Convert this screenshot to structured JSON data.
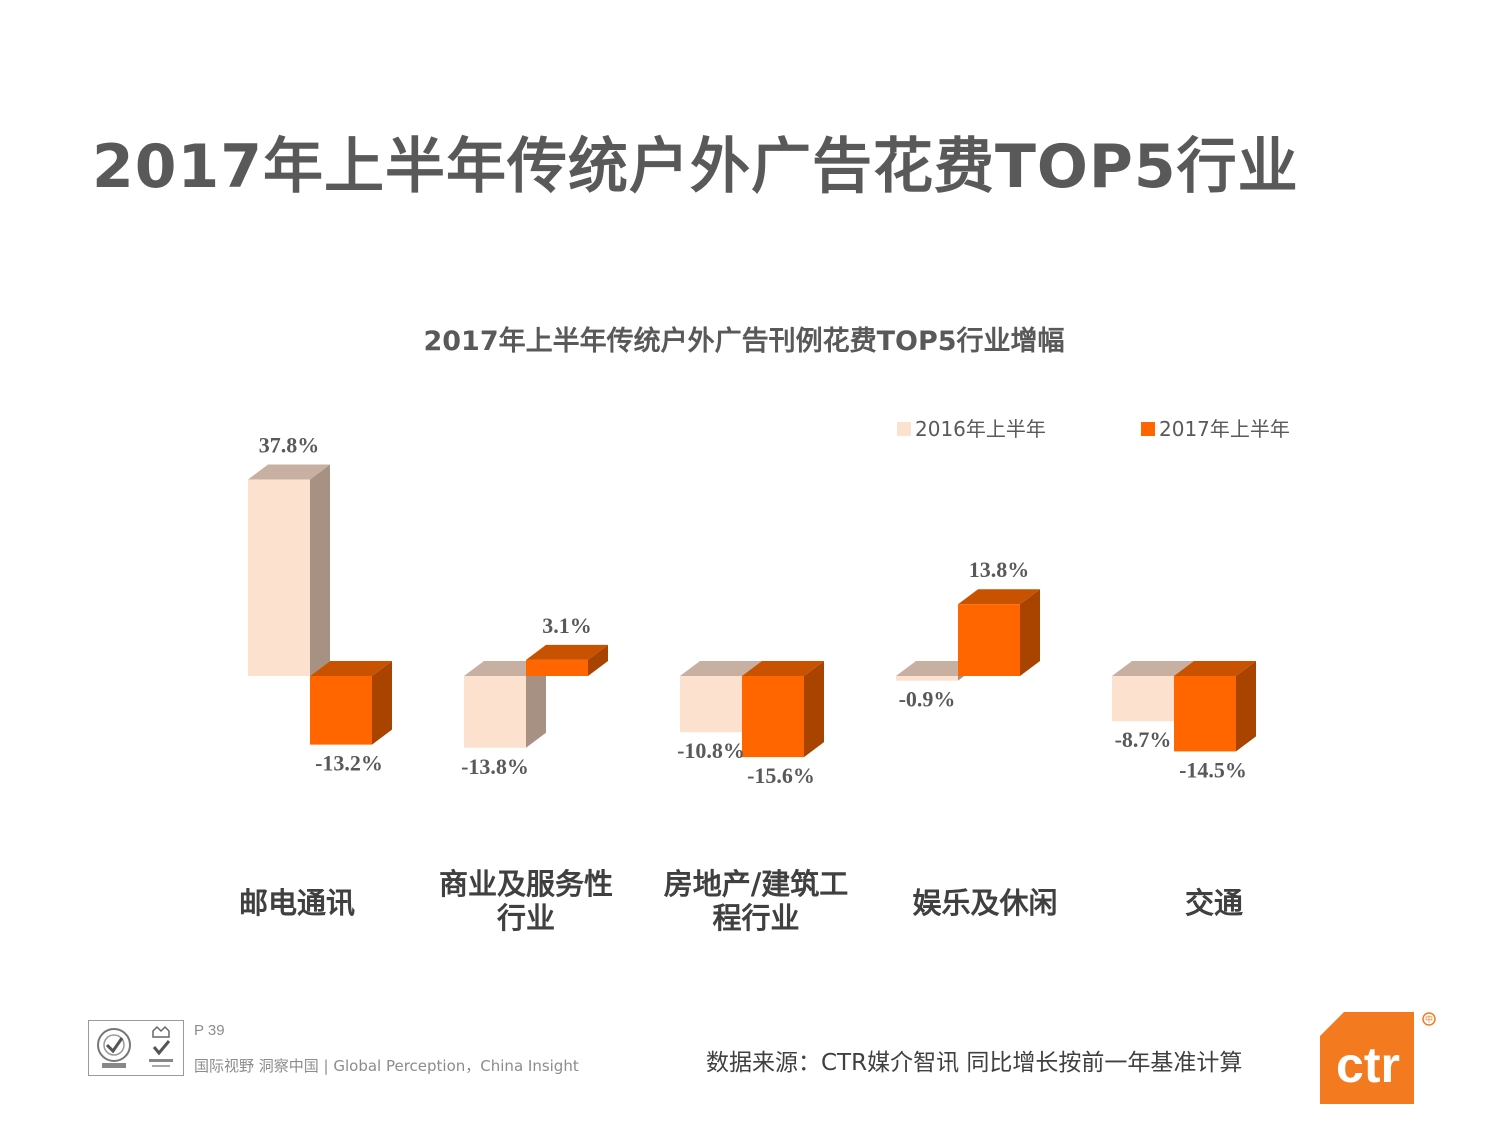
{
  "page": {
    "title": "2017年上半年传统户外广告花费TOP5行业",
    "page_number": "P 39",
    "tagline": "国际视野  洞察中国 |  Global Perception，China Insight",
    "source": "数据来源：CTR媒介智讯   同比增长按前一年基准计算",
    "logo_text": "ctr",
    "logo_mark": "中",
    "cert_badges": [
      "sgs-badge",
      "ukas-badge"
    ]
  },
  "chart_data": {
    "type": "bar",
    "title": "2017年上半年传统户外广告刊例花费TOP5行业增幅",
    "categories": [
      [
        "邮电通讯"
      ],
      [
        "商业及服务性",
        "行业"
      ],
      [
        "房地产/建筑工",
        "程行业"
      ],
      [
        "娱乐及休闲"
      ],
      [
        "交通"
      ]
    ],
    "series": [
      {
        "name": "2016年上半年",
        "values": [
          37.8,
          -13.8,
          -10.8,
          -0.9,
          -8.7
        ],
        "labels": [
          "37.8%",
          "-13.8%",
          "-10.8%",
          "-0.9%",
          "-8.7%"
        ]
      },
      {
        "name": "2017年上半年",
        "values": [
          -13.2,
          3.1,
          -15.6,
          13.8,
          -14.5
        ],
        "labels": [
          "-13.2%",
          "3.1%",
          "-15.6%",
          "13.8%",
          "-14.5%"
        ]
      }
    ],
    "ylim": [
      -20,
      40
    ],
    "legend": "top-right",
    "grid": false,
    "style": "3d-clustered-column",
    "colors": {
      "s2016_front": "#FCE1CE",
      "s2016_side": "#A69183",
      "s2016_top": "#C7B0A2",
      "s2017_front": "#FF6600",
      "s2017_side": "#A84300",
      "s2017_top": "#C85200"
    }
  }
}
